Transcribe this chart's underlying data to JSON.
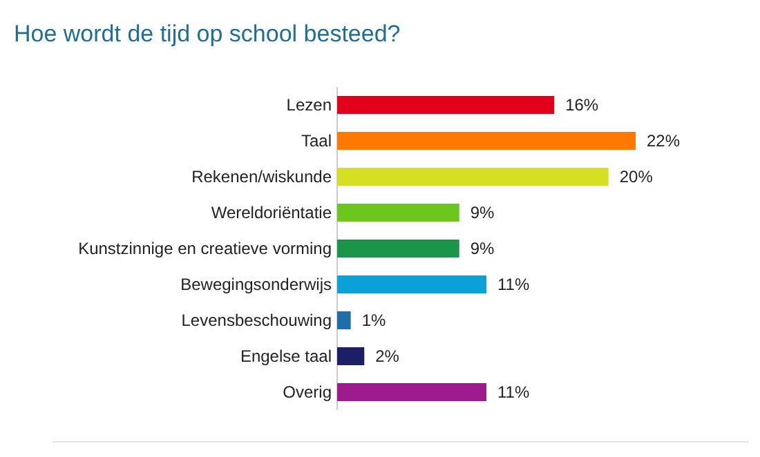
{
  "chart_data": {
    "type": "bar",
    "orientation": "horizontal",
    "title": "Hoe wordt de tijd op school besteed?",
    "categories": [
      "Lezen",
      "Taal",
      "Rekenen/wiskunde",
      "Wereldoriëntatie",
      "Kunstzinnige en creatieve vorming",
      "Bewegingsonderwijs",
      "Levensbeschouwing",
      "Engelse taal",
      "Overig"
    ],
    "values": [
      16,
      22,
      20,
      9,
      9,
      11,
      1,
      2,
      11
    ],
    "value_labels": [
      "16%",
      "22%",
      "20%",
      "9%",
      "9%",
      "11%",
      "1%",
      "2%",
      "11%"
    ],
    "colors": [
      "#e3001b",
      "#ff7900",
      "#d7df23",
      "#6cc61e",
      "#1a9448",
      "#0aa0d8",
      "#1f6ea8",
      "#1c1f66",
      "#9b1b8e"
    ]
  }
}
